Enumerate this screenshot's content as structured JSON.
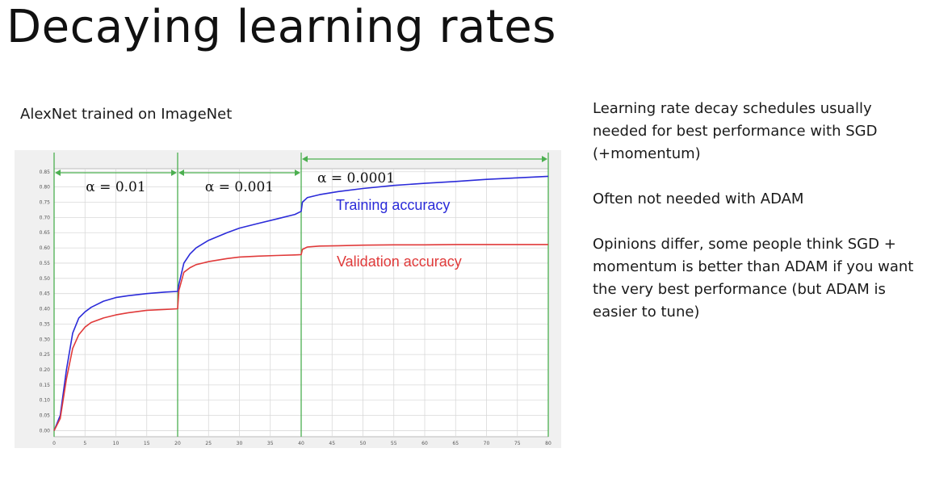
{
  "slide": {
    "title": "Decaying learning rates",
    "chart_caption": "AlexNet trained on ImageNet",
    "notes": [
      "Learning rate decay schedules usually needed for best performance with SGD (+momentum)",
      "Often not needed with ADAM",
      "Opinions differ, some people think SGD + momentum is better than ADAM if you want the very best performance (but ADAM is easier to tune)"
    ]
  },
  "chart_data": {
    "type": "line",
    "title": "",
    "xlabel": "",
    "ylabel": "",
    "xlim": [
      0,
      80
    ],
    "ylim": [
      -0.02,
      0.86
    ],
    "grid": true,
    "x_ticks": [
      0,
      5,
      10,
      15,
      20,
      25,
      30,
      35,
      40,
      45,
      50,
      55,
      60,
      65,
      70,
      75,
      80
    ],
    "y_ticks": [
      "0.00",
      "0.05",
      "0.10",
      "0.15",
      "0.20",
      "0.25",
      "0.30",
      "0.35",
      "0.40",
      "0.45",
      "0.50",
      "0.55",
      "0.60",
      "0.65",
      "0.70",
      "0.75",
      "0.80",
      "0.85"
    ],
    "series": [
      {
        "name": "Training accuracy",
        "color": "#2b2bd9",
        "x": [
          0,
          1,
          2,
          3,
          4,
          5,
          6,
          8,
          10,
          12,
          15,
          18,
          20,
          20.2,
          21,
          22,
          23,
          25,
          28,
          30,
          33,
          36,
          39,
          40,
          40.2,
          41,
          43,
          46,
          50,
          55,
          60,
          65,
          70,
          75,
          80
        ],
        "y": [
          0.0,
          0.05,
          0.2,
          0.32,
          0.37,
          0.39,
          0.405,
          0.425,
          0.437,
          0.443,
          0.45,
          0.455,
          0.457,
          0.48,
          0.55,
          0.58,
          0.6,
          0.625,
          0.65,
          0.665,
          0.68,
          0.695,
          0.71,
          0.72,
          0.75,
          0.765,
          0.775,
          0.785,
          0.795,
          0.805,
          0.812,
          0.818,
          0.825,
          0.83,
          0.835
        ]
      },
      {
        "name": "Validation accuracy",
        "color": "#e03a3a",
        "x": [
          0,
          1,
          2,
          3,
          4,
          5,
          6,
          8,
          10,
          12,
          15,
          18,
          20,
          20.2,
          21,
          22,
          23,
          25,
          28,
          30,
          33,
          36,
          39,
          40,
          40.2,
          41,
          43,
          46,
          50,
          55,
          60,
          65,
          70,
          75,
          80
        ],
        "y": [
          0.0,
          0.04,
          0.17,
          0.27,
          0.315,
          0.34,
          0.355,
          0.37,
          0.38,
          0.387,
          0.395,
          0.398,
          0.4,
          0.46,
          0.52,
          0.535,
          0.545,
          0.555,
          0.565,
          0.57,
          0.573,
          0.575,
          0.577,
          0.578,
          0.595,
          0.603,
          0.606,
          0.607,
          0.609,
          0.61,
          0.61,
          0.611,
          0.611,
          0.611,
          0.611
        ]
      }
    ],
    "phases": [
      {
        "label": "α = 0.01",
        "x_start": 0,
        "x_end": 20
      },
      {
        "label": "α = 0.001",
        "x_start": 20,
        "x_end": 40
      },
      {
        "label": "α = 0.0001",
        "x_start": 40,
        "x_end": 80
      }
    ],
    "boundary_color": "#4caf50"
  }
}
